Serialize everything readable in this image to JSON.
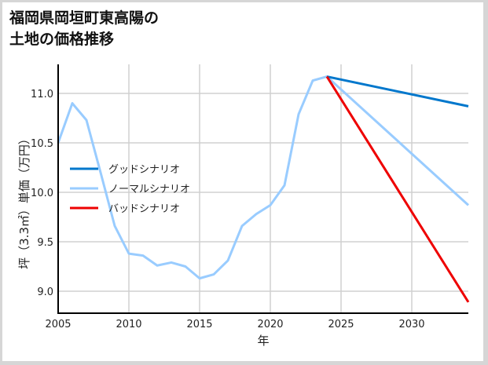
{
  "title": {
    "line1": "福岡県岡垣町東高陽の",
    "line2": "土地の価格推移"
  },
  "chart_data": {
    "type": "line",
    "title": "福岡県岡垣町東高陽の土地の価格推移",
    "xlabel": "年",
    "ylabel": "坪（3.3㎡）単価（万円）",
    "xlim": [
      2005,
      2034
    ],
    "ylim": [
      8.77,
      11.29
    ],
    "xticks": [
      2005,
      2010,
      2015,
      2020,
      2025,
      2030
    ],
    "yticks": [
      9.0,
      9.5,
      10.0,
      10.5,
      11.0
    ],
    "ytick_labels": [
      "9.0",
      "9.5",
      "10.0",
      "10.5",
      "11.0"
    ],
    "grid": true,
    "legend_position": "center-left",
    "series": [
      {
        "name": "グッドシナリオ",
        "color": "#0077cc",
        "x": [
          2024,
          2034
        ],
        "values": [
          11.17,
          10.87
        ]
      },
      {
        "name": "ノーマルシナリオ",
        "color": "#99ccff",
        "x": [
          2005,
          2006,
          2007,
          2008,
          2009,
          2010,
          2011,
          2012,
          2013,
          2014,
          2015,
          2016,
          2017,
          2018,
          2019,
          2020,
          2021,
          2022,
          2023,
          2024,
          2034
        ],
        "values": [
          10.5,
          10.9,
          10.73,
          10.2,
          9.66,
          9.38,
          9.36,
          9.26,
          9.29,
          9.25,
          9.13,
          9.17,
          9.31,
          9.66,
          9.78,
          9.87,
          10.07,
          10.79,
          11.13,
          11.17,
          9.87
        ]
      },
      {
        "name": "バッドシナリオ",
        "color": "#ee0000",
        "x": [
          2024,
          2034
        ],
        "values": [
          11.17,
          8.89
        ]
      }
    ]
  }
}
